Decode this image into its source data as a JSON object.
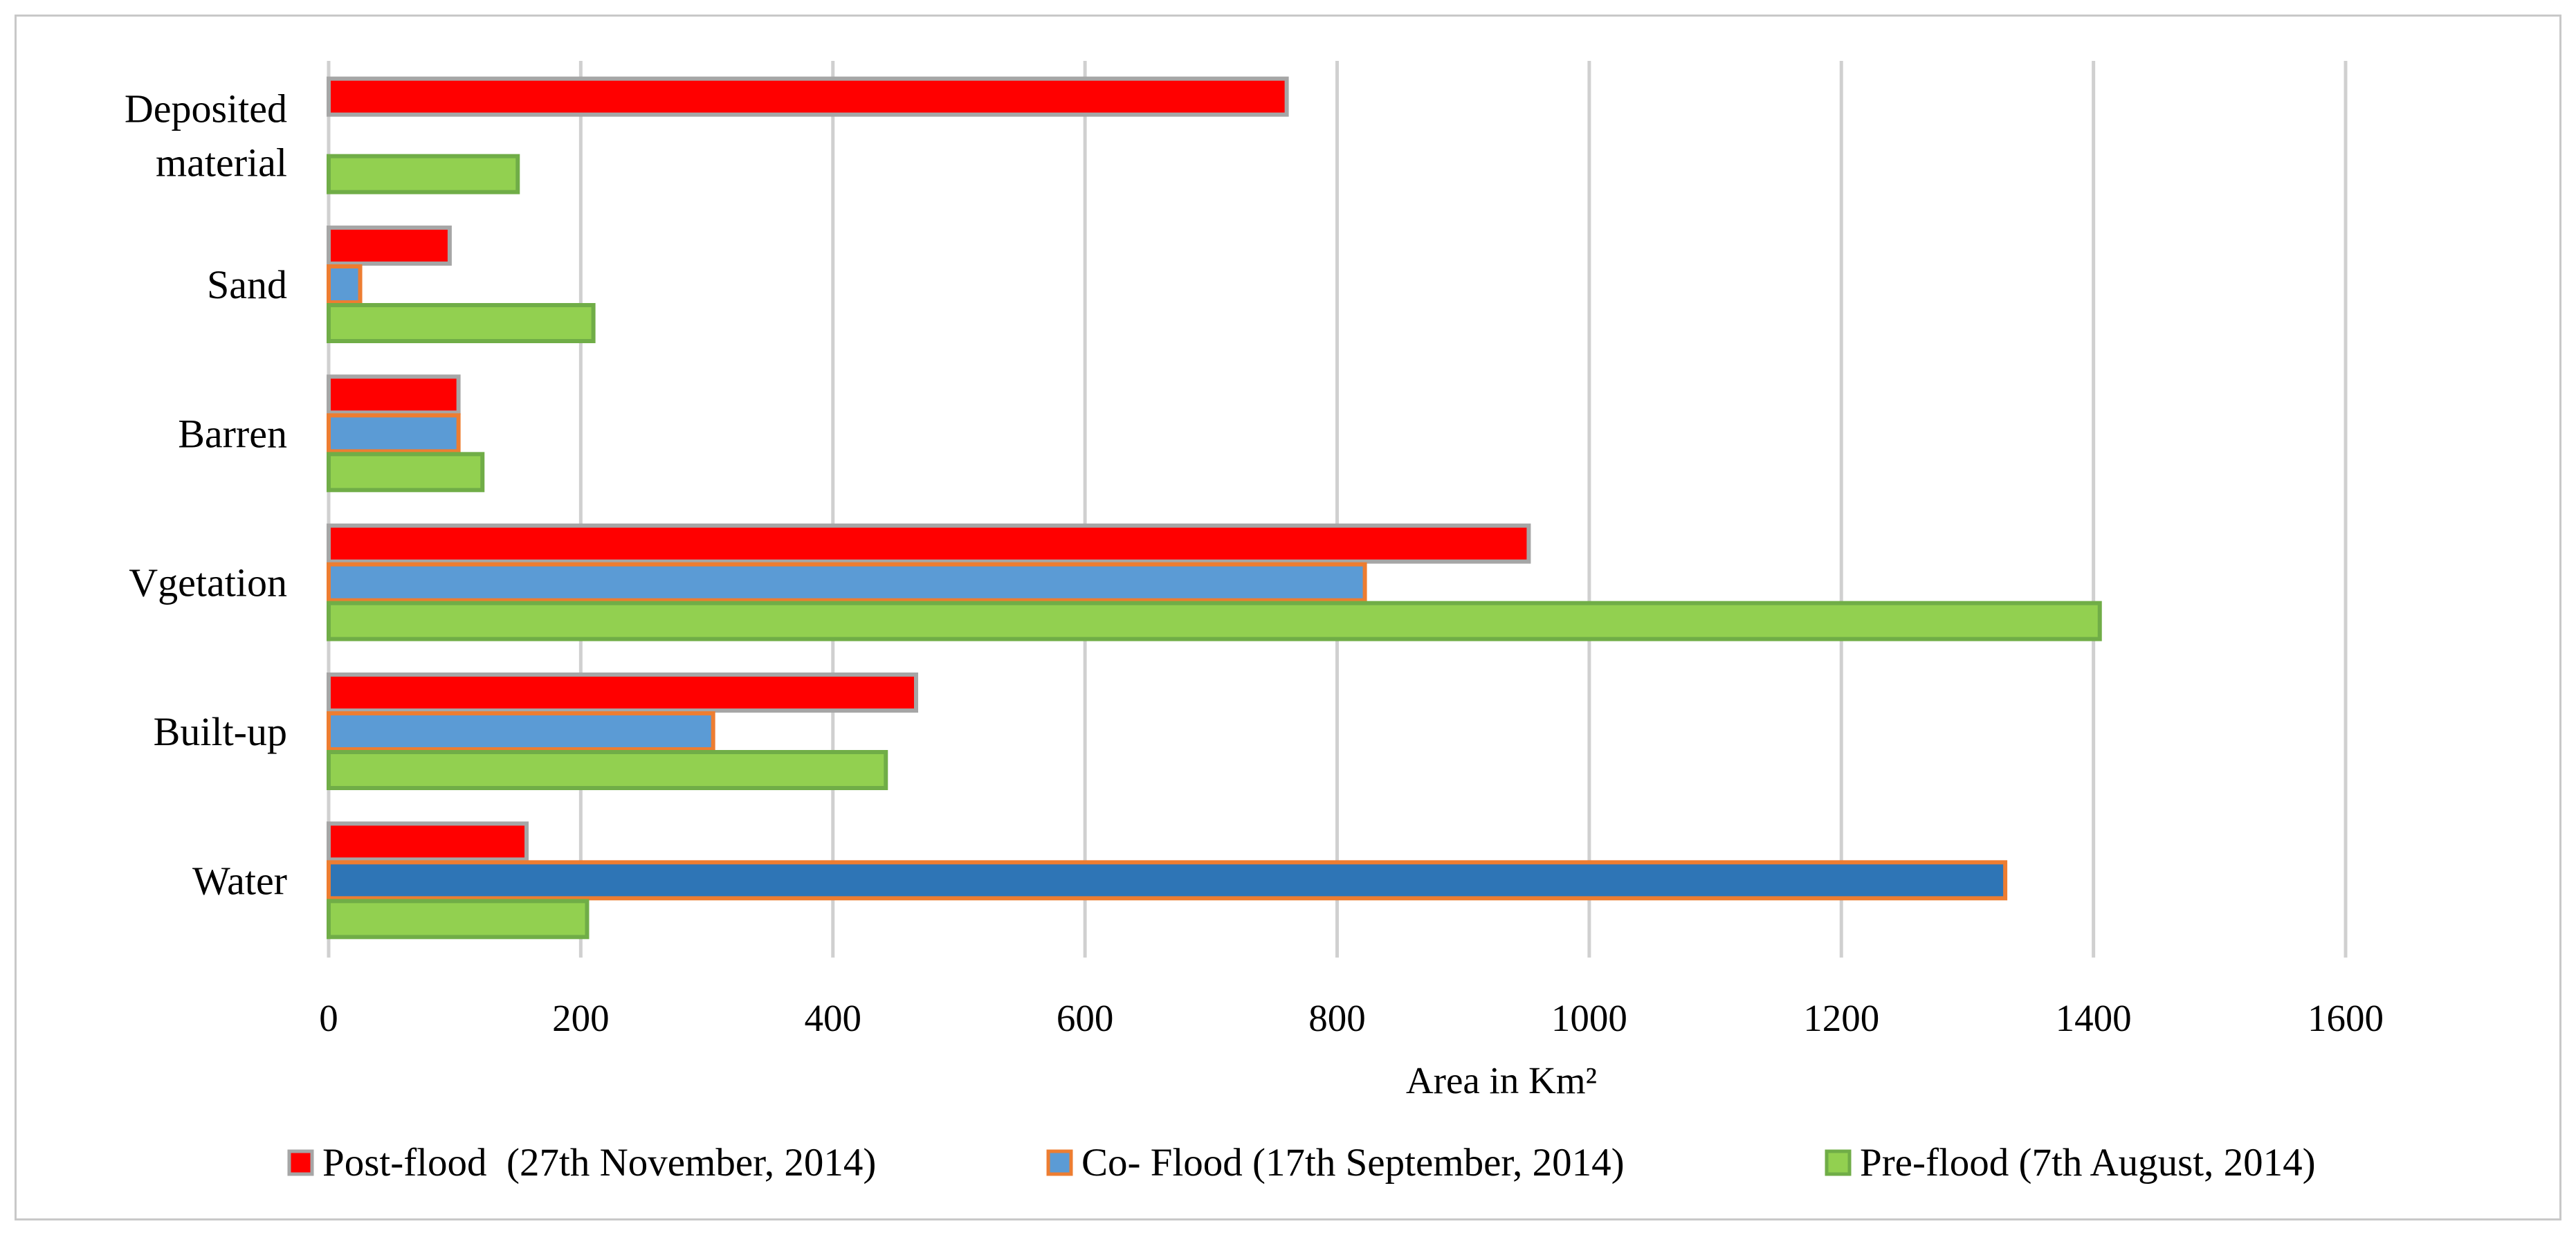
{
  "chart_data": {
    "type": "bar",
    "orientation": "horizontal",
    "title": "",
    "xlabel": "Area in Km²",
    "ylabel": "",
    "xlim": [
      0,
      1600
    ],
    "xticks": [
      0,
      200,
      400,
      600,
      800,
      1000,
      1200,
      1400,
      1600
    ],
    "grid": "vertical",
    "legend_position": "bottom",
    "categories": [
      [
        "Deposited",
        "material"
      ],
      [
        "Sand"
      ],
      [
        "Barren"
      ],
      [
        "Vgetation"
      ],
      [
        "Built-up"
      ],
      [
        "Water"
      ]
    ],
    "series": [
      {
        "name": "Post-flood  (27th November, 2014)",
        "color": "#ff0000",
        "stroke": "#a6a6a6",
        "values": [
          760,
          96,
          103,
          952,
          466,
          157
        ]
      },
      {
        "name": "Co- Flood (17th September, 2014)",
        "color": "#5b9bd5",
        "stroke": "#ed7d31",
        "values": [
          null,
          25,
          103,
          822,
          305,
          1330
        ]
      },
      {
        "name": "Pre-flood (7th August, 2014)",
        "color": "#92d050",
        "stroke": "#70ad47",
        "values": [
          150,
          210,
          122,
          1405,
          442,
          205
        ]
      }
    ],
    "highlight": {
      "category_index": 5,
      "series_index": 1,
      "color": "#2e75b6"
    }
  }
}
